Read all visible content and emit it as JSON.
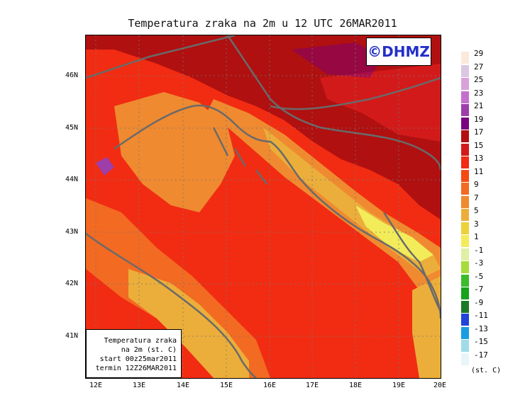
{
  "title": "Temperatura zraka na 2m u 12 UTC 26MAR2011",
  "copyright": "©DHMZ",
  "info_box": [
    "Temperatura zraka",
    "na 2m (st. C)",
    "start 00z25mar2011",
    "termin 12Z26MAR2011"
  ],
  "lat_labels": [
    "46N",
    "45N",
    "44N",
    "43N",
    "42N",
    "41N"
  ],
  "lon_labels": [
    "12E",
    "13E",
    "14E",
    "15E",
    "16E",
    "17E",
    "18E",
    "19E",
    "20E"
  ],
  "legend": {
    "labels": [
      "29",
      "27",
      "25",
      "23",
      "21",
      "19",
      "17",
      "15",
      "13",
      "11",
      "9",
      "7",
      "5",
      "3",
      "1",
      "-1",
      "-3",
      "-5",
      "-7",
      "-9",
      "-11",
      "-13",
      "-15",
      "-17"
    ],
    "colors": [
      "#fbe9dc",
      "#dcc7e3",
      "#d9a1d9",
      "#c46fce",
      "#9d3eaa",
      "#7a0080",
      "#b01010",
      "#d31a1a",
      "#f12c12",
      "#f54b12",
      "#f36a22",
      "#ef8a30",
      "#ecae3a",
      "#ecd13a",
      "#f3ec5a",
      "#dff0a2",
      "#a8dc3a",
      "#3cbc2c",
      "#16a21a",
      "#1a7a28",
      "#2244d8",
      "#189ee0",
      "#a0dce8",
      "#e8f6fa"
    ],
    "units": "(st. C)"
  }
}
